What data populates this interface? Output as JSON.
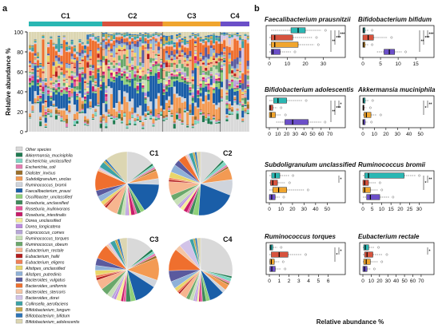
{
  "panel_labels": {
    "a": "a",
    "b": "b"
  },
  "colors": {
    "cluster": {
      "C1": "#2ab7b3",
      "C2": "#d7533e",
      "C3": "#f0a52e",
      "C4": "#6b4fc8"
    },
    "species": [
      "#d9d9d9",
      "#1f7a50",
      "#7fd6c3",
      "#e37bb0",
      "#9b6f2a",
      "#f39a53",
      "#cfd4dc",
      "#1a5ea8",
      "#8fd179",
      "#3f8a5a",
      "#e6569b",
      "#c91c6a",
      "#f6ed9b",
      "#bd8be0",
      "#b7a7d8",
      "#c7dfb6",
      "#6aa86b",
      "#f7b58f",
      "#b41d1d",
      "#f07f56",
      "#e9d66a",
      "#8fb1d8",
      "#5a5a9e",
      "#ef6f2e",
      "#f4c6a6",
      "#d2c3e8",
      "#3ca2a6",
      "#c7a84a",
      "#2d74b7",
      "#dcd6b2"
    ]
  },
  "chart_data": [
    {
      "type": "bar",
      "title": "",
      "ylabel": "Relative abundance %",
      "xlabel": "",
      "ylim": [
        0,
        100
      ],
      "yticks": [
        0,
        20,
        40,
        60,
        80,
        100
      ],
      "clusters": [
        {
          "name": "C1",
          "samples": 28
        },
        {
          "name": "C2",
          "samples": 23
        },
        {
          "name": "C3",
          "samples": 22
        },
        {
          "name": "C4",
          "samples": 11
        }
      ],
      "legend": [
        "Other species",
        "Akkermansia_muciniphila",
        "Escherichia_unclassified",
        "Escherichia_coli",
        "Dialister_invisus",
        "Subdoligranulum_unclas",
        "Ruminococcus_bromii",
        "Faecalibacterium_prausi",
        "Oscillibacter_unclassified",
        "Roseburia_unclassified",
        "Roseburia_inulinivorans",
        "Roseburia_intestinalis",
        "Dorea_unclassified",
        "Dorea_longicatena",
        "Coprococcus_comes",
        "Ruminococcus_torques",
        "Ruminococcus_obeum",
        "Eubacterium_rectale",
        "Eubacterium_hallii",
        "Eubacterium_eligens",
        "Alistipes_unclassified",
        "Alistipes_putredinis",
        "Bacteroides_vulgatus",
        "Bacteroides_uniformis",
        "Bacteroides_stercoris",
        "Bacteroides_dorei",
        "Collinsella_aerofaciens",
        "Bifidobacterium_longum",
        "Bifidobacterium_bifidum",
        "Bifidobacterium_adolescentis"
      ]
    },
    {
      "type": "pie",
      "panels": [
        {
          "name": "C1",
          "values": [
            14,
            1,
            1,
            1,
            1,
            4,
            3,
            15,
            2,
            2,
            1,
            2,
            1,
            1,
            1,
            2,
            2,
            6,
            1,
            1,
            2,
            3,
            3,
            10,
            1,
            1,
            3,
            1,
            1,
            11
          ]
        },
        {
          "name": "C2",
          "values": [
            12,
            1,
            2,
            1,
            1,
            6,
            8,
            20,
            3,
            2,
            1,
            2,
            2,
            1,
            1,
            3,
            3,
            7,
            1,
            1,
            3,
            4,
            3,
            4,
            1,
            1,
            2,
            1,
            1,
            2
          ]
        },
        {
          "name": "C3",
          "values": [
            11,
            1,
            1,
            1,
            1,
            9,
            3,
            9,
            2,
            2,
            1,
            1,
            2,
            1,
            1,
            2,
            3,
            4,
            1,
            1,
            2,
            2,
            3,
            6,
            1,
            1,
            2,
            1,
            1,
            3
          ]
        },
        {
          "name": "C4",
          "values": [
            30,
            1,
            2,
            1,
            1,
            3,
            2,
            8,
            2,
            2,
            1,
            1,
            1,
            1,
            1,
            2,
            2,
            4,
            1,
            1,
            2,
            4,
            6,
            12,
            3,
            6,
            2,
            1,
            1,
            2
          ]
        }
      ]
    },
    {
      "type": "box",
      "xlabel": "Relative abundance %",
      "panels": [
        {
          "title": "Faecalibacterium prausnitzii",
          "xticks": [
            0,
            10,
            20,
            30
          ],
          "xlim": [
            0,
            36
          ],
          "boxes": [
            {
              "q1": 12,
              "med": 16,
              "q3": 20,
              "lo": 1,
              "hi": 29
            },
            {
              "q1": 1,
              "med": 3,
              "q3": 13,
              "lo": 0,
              "hi": 24
            },
            {
              "q1": 1,
              "med": 3,
              "q3": 16,
              "lo": 0,
              "hi": 25
            },
            {
              "q1": 1,
              "med": 2,
              "q3": 6,
              "lo": 0,
              "hi": 12
            }
          ],
          "sig": [
            "***",
            "***",
            "**"
          ]
        },
        {
          "title": "Bifidobacterium bifidum",
          "xticks": [
            0,
            5,
            10,
            15
          ],
          "xlim": [
            0,
            17
          ],
          "boxes": [
            {
              "q1": 0,
              "med": 0.2,
              "q3": 0.6,
              "lo": 0,
              "hi": 1.5
            },
            {
              "q1": 0,
              "med": 1.5,
              "q3": 3,
              "lo": 0,
              "hi": 7
            },
            {
              "q1": 0,
              "med": 0.2,
              "q3": 0.6,
              "lo": 0,
              "hi": 1.5
            },
            {
              "q1": 6,
              "med": 7.5,
              "q3": 9,
              "lo": 4,
              "hi": 11
            }
          ],
          "sig": [
            "***",
            "***",
            "**"
          ]
        },
        {
          "title": "Bifidobacterium adolescentis",
          "xticks": [
            0,
            10,
            20,
            30,
            40,
            50,
            60,
            70
          ],
          "xlim": [
            0,
            75
          ],
          "boxes": [
            {
              "q1": 5,
              "med": 10,
              "q3": 20,
              "lo": 0,
              "hi": 38
            },
            {
              "q1": 0,
              "med": 1,
              "q3": 4,
              "lo": 0,
              "hi": 9
            },
            {
              "q1": 0,
              "med": 2,
              "q3": 7,
              "lo": 0,
              "hi": 14
            },
            {
              "q1": 18,
              "med": 27,
              "q3": 45,
              "lo": 8,
              "hi": 60
            }
          ],
          "sig": [
            "*",
            "***",
            "**"
          ]
        },
        {
          "title": "Akkermansia muciniphila",
          "xticks": [
            0,
            10,
            20,
            30,
            40,
            50
          ],
          "xlim": [
            0,
            52
          ],
          "boxes": [
            {
              "q1": 0,
              "med": 0.5,
              "q3": 2,
              "lo": 0,
              "hi": 5
            },
            {
              "q1": 0,
              "med": 0.3,
              "q3": 1,
              "lo": 0,
              "hi": 3
            },
            {
              "q1": 1,
              "med": 3,
              "q3": 7,
              "lo": 0,
              "hi": 12
            },
            {
              "q1": 0,
              "med": 0.3,
              "q3": 2,
              "lo": 0,
              "hi": 4
            }
          ],
          "sig": [
            "**",
            "*"
          ]
        },
        {
          "title": "Subdoligranulum unclassified",
          "xticks": [
            0,
            10,
            20,
            30,
            40,
            50
          ],
          "xlim": [
            0,
            56
          ],
          "boxes": [
            {
              "q1": 2,
              "med": 5,
              "q3": 9,
              "lo": 0,
              "hi": 17
            },
            {
              "q1": 1,
              "med": 3,
              "q3": 7,
              "lo": 0,
              "hi": 14
            },
            {
              "q1": 3,
              "med": 8,
              "q3": 15,
              "lo": 0,
              "hi": 30
            },
            {
              "q1": 0,
              "med": 2,
              "q3": 5,
              "lo": 0,
              "hi": 9
            }
          ],
          "sig": [
            "*"
          ]
        },
        {
          "title": "Ruminococcus bromii",
          "xticks": [
            0,
            5,
            10,
            15,
            20,
            25,
            30
          ],
          "xlim": [
            0,
            32
          ],
          "boxes": [
            {
              "q1": 1,
              "med": 3,
              "q3": 22,
              "lo": 0,
              "hi": 28
            },
            {
              "q1": 0,
              "med": 1,
              "q3": 3,
              "lo": 0,
              "hi": 7
            },
            {
              "q1": 0,
              "med": 1,
              "q3": 4,
              "lo": 0,
              "hi": 8
            },
            {
              "q1": 2,
              "med": 4,
              "q3": 9,
              "lo": 0,
              "hi": 14
            }
          ],
          "sig": [
            "**",
            "*"
          ]
        },
        {
          "title": "Ruminococcus torques",
          "xticks": [
            0,
            1,
            2,
            3,
            4,
            5,
            6
          ],
          "xlim": [
            0,
            6.6
          ],
          "boxes": [
            {
              "q1": 0.05,
              "med": 0.15,
              "q3": 0.35,
              "lo": 0,
              "hi": 0.8
            },
            {
              "q1": 0.2,
              "med": 1,
              "q3": 1.9,
              "lo": 0,
              "hi": 3.3
            },
            {
              "q1": 0.05,
              "med": 0.2,
              "q3": 0.5,
              "lo": 0,
              "hi": 1
            },
            {
              "q1": 0.05,
              "med": 0.25,
              "q3": 0.6,
              "lo": 0,
              "hi": 1.2
            }
          ],
          "sig": [
            "*",
            "*"
          ]
        },
        {
          "title": "Eubacterium rectale",
          "xticks": [
            0,
            10,
            20,
            30,
            40,
            50,
            60,
            70
          ],
          "xlim": [
            0,
            72
          ],
          "boxes": [
            {
              "q1": 1,
              "med": 3,
              "q3": 7,
              "lo": 0,
              "hi": 14
            },
            {
              "q1": 2,
              "med": 5,
              "q3": 12,
              "lo": 0,
              "hi": 24
            },
            {
              "q1": 1,
              "med": 4,
              "q3": 9,
              "lo": 0,
              "hi": 18
            },
            {
              "q1": 0,
              "med": 2,
              "q3": 5,
              "lo": 0,
              "hi": 9
            }
          ],
          "sig": [
            "*"
          ]
        }
      ]
    }
  ]
}
